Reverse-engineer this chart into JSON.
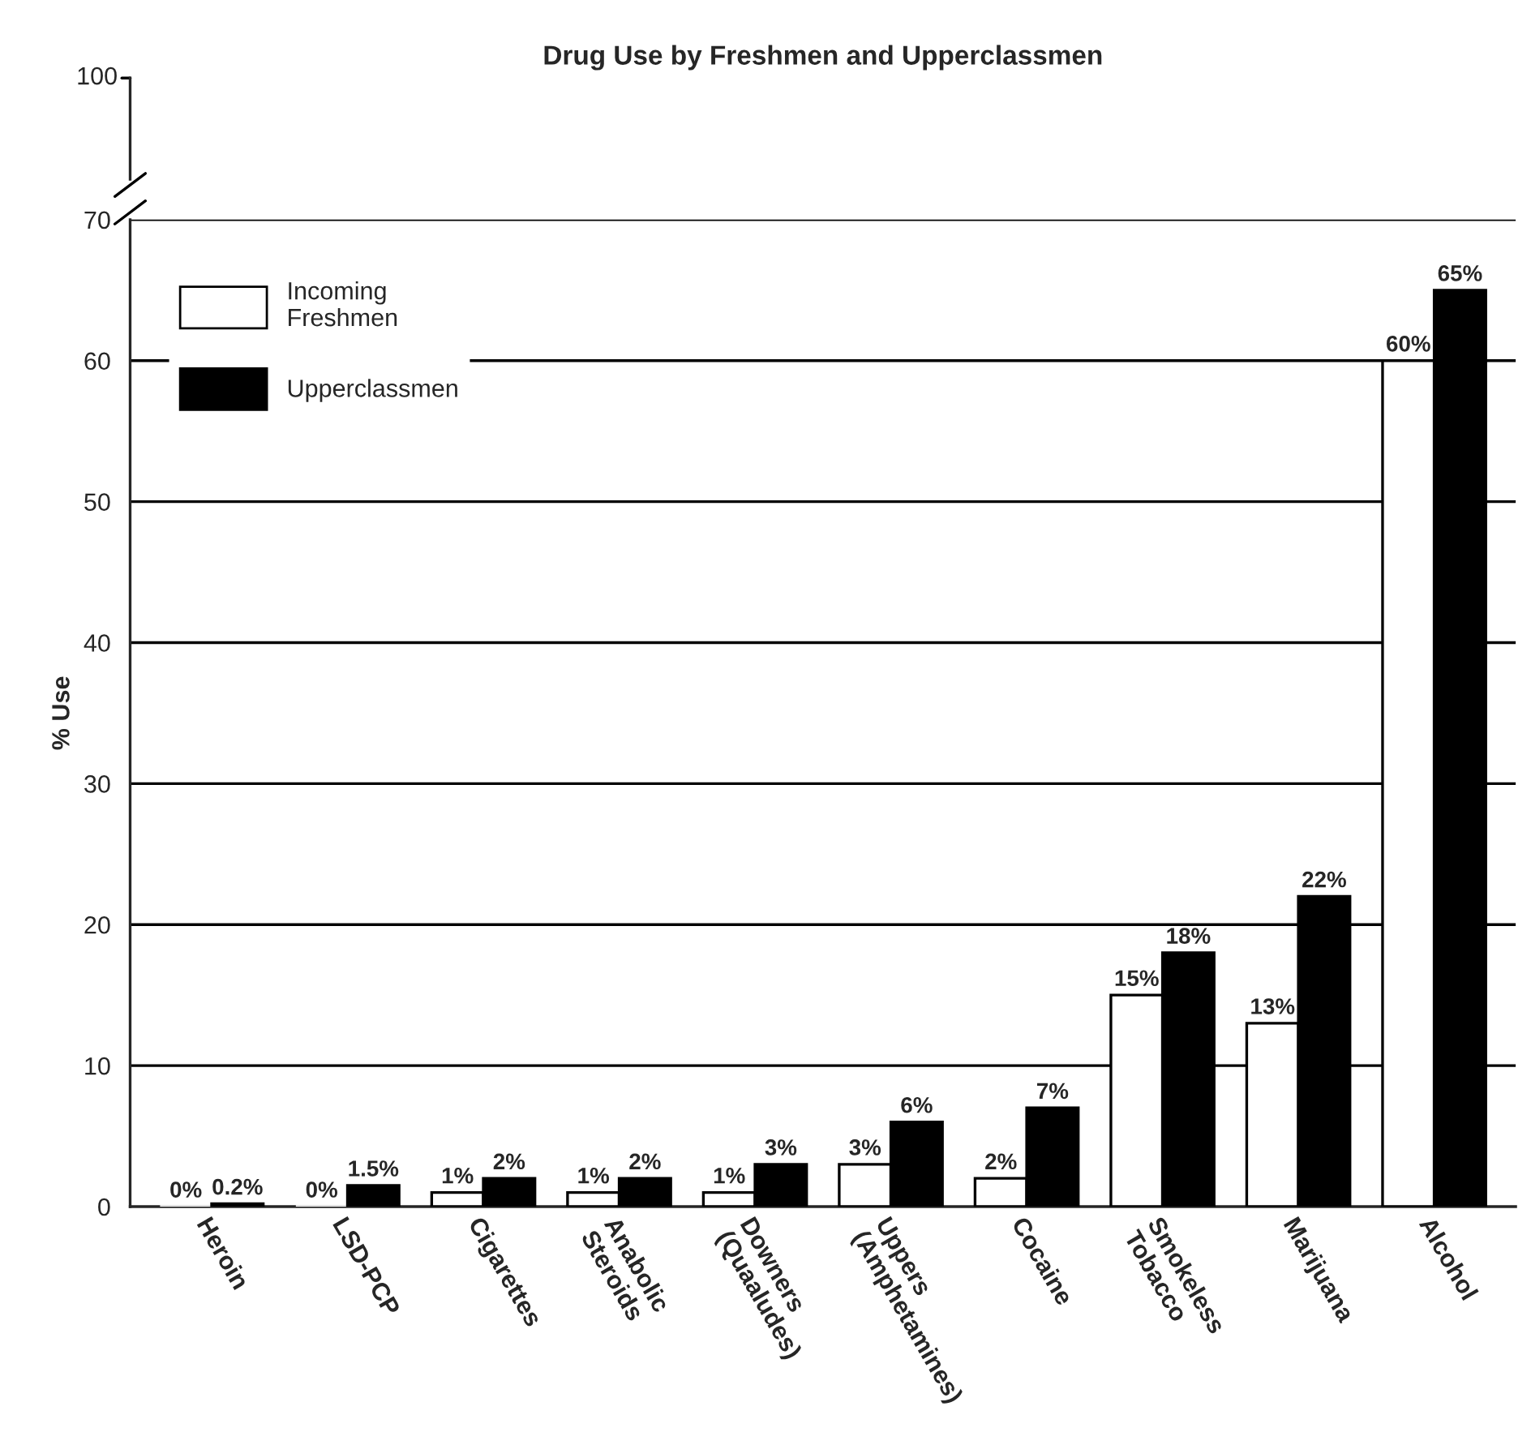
{
  "chart_data": [
    {
      "type": "other",
      "title": "Drug Use by Freshmen and Upperclassmen",
      "annotations": [
        "100"
      ]
    },
    {
      "type": "bar",
      "ylabel": "% Use",
      "categories": [
        "Heroin",
        "LSD-PCP",
        "Cigarettes",
        "Anabolic\nSteroids",
        "Downers\n(Quaaludes)",
        "Uppers\n(Amphetamines)",
        "Cocaine",
        "Smokeless\nTobacco",
        "Marijuana",
        "Alcohol"
      ],
      "series": [
        {
          "name": "Incoming\nFreshmen",
          "color": "#ffffff",
          "values": [
            0,
            0,
            1,
            1,
            1,
            3,
            2,
            15,
            13,
            60
          ],
          "value_labels": [
            "0%",
            "0%",
            "1%",
            "1%",
            "1%",
            "3%",
            "2%",
            "15%",
            "13%",
            "60%"
          ]
        },
        {
          "name": "Upperclassmen",
          "color": "#000000",
          "values": [
            0.2,
            1.5,
            2,
            2,
            3,
            6,
            7,
            18,
            22,
            65
          ],
          "value_labels": [
            "0.2%",
            "1.5%",
            "2%",
            "2%",
            "3%",
            "6%",
            "7%",
            "18%",
            "22%",
            "65%"
          ]
        }
      ],
      "ylim": [
        0,
        70
      ],
      "yticks": [
        0,
        10,
        20,
        30,
        40,
        50,
        60,
        70
      ],
      "grid": "y",
      "legend": "top left"
    }
  ]
}
